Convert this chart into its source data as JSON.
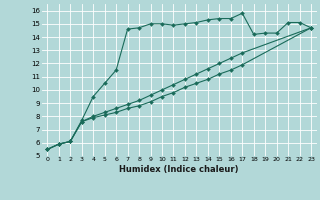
{
  "xlabel": "Humidex (Indice chaleur)",
  "bg_color": "#b2d8d8",
  "grid_color": "#c8e8e8",
  "line_color": "#1a6b5a",
  "xlim": [
    -0.5,
    23.5
  ],
  "ylim": [
    5,
    16.5
  ],
  "series1_x": [
    0,
    1,
    2,
    3,
    4,
    5,
    6,
    7,
    8,
    9,
    10,
    11,
    12,
    13,
    14,
    15,
    16,
    17,
    18,
    19,
    20,
    21,
    22,
    23
  ],
  "series1_y": [
    5.5,
    5.9,
    6.1,
    7.7,
    9.5,
    10.5,
    11.5,
    14.6,
    14.7,
    15.0,
    15.0,
    14.9,
    15.0,
    15.1,
    15.3,
    15.4,
    15.4,
    15.8,
    14.2,
    14.3,
    14.3,
    15.1,
    15.1,
    14.7
  ],
  "series2_x": [
    0,
    1,
    2,
    3,
    4,
    5,
    6,
    7,
    8,
    9,
    10,
    11,
    12,
    13,
    14,
    15,
    16,
    17,
    23
  ],
  "series2_y": [
    5.5,
    5.9,
    6.1,
    7.6,
    7.9,
    8.1,
    8.3,
    8.6,
    8.8,
    9.1,
    9.5,
    9.8,
    10.2,
    10.5,
    10.8,
    11.2,
    11.5,
    11.9,
    14.7
  ],
  "series3_x": [
    0,
    1,
    2,
    3,
    4,
    5,
    6,
    7,
    8,
    9,
    10,
    11,
    12,
    13,
    14,
    15,
    16,
    17,
    23
  ],
  "series3_y": [
    5.5,
    5.9,
    6.1,
    7.6,
    8.0,
    8.3,
    8.6,
    8.9,
    9.2,
    9.6,
    10.0,
    10.4,
    10.8,
    11.2,
    11.6,
    12.0,
    12.4,
    12.8,
    14.7
  ],
  "ytick_values": [
    5,
    6,
    7,
    8,
    9,
    10,
    11,
    12,
    13,
    14,
    15,
    16
  ],
  "xtick_labels": [
    "0",
    "1",
    "2",
    "3",
    "4",
    "5",
    "6",
    "7",
    "8",
    "9",
    "10",
    "11",
    "12",
    "13",
    "14",
    "15",
    "16",
    "17",
    "18",
    "19",
    "20",
    "21",
    "22",
    "23"
  ],
  "marker": "D",
  "markersize": 2.0,
  "linewidth": 0.8
}
